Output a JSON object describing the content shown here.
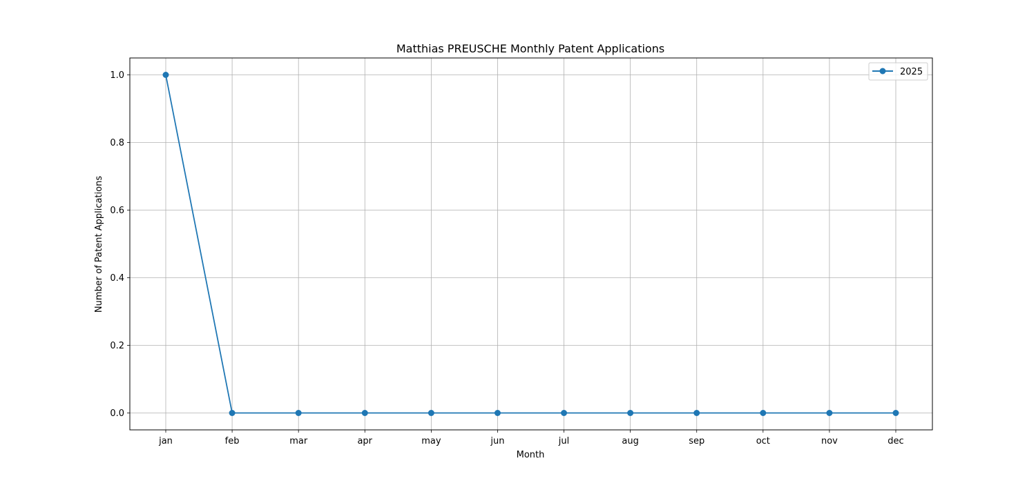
{
  "chart_data": {
    "type": "line",
    "title": "Matthias PREUSCHE Monthly Patent Applications",
    "xlabel": "Month",
    "ylabel": "Number of Patent Applications",
    "categories": [
      "jan",
      "feb",
      "mar",
      "apr",
      "may",
      "jun",
      "jul",
      "aug",
      "sep",
      "oct",
      "nov",
      "dec"
    ],
    "series": [
      {
        "name": "2025",
        "values": [
          1,
          0,
          0,
          0,
          0,
          0,
          0,
          0,
          0,
          0,
          0,
          0
        ],
        "color": "#1f77b4",
        "marker": "circle"
      }
    ],
    "ylim": [
      -0.05,
      1.05
    ],
    "yticks": [
      "0.0",
      "0.2",
      "0.4",
      "0.6",
      "0.8",
      "1.0"
    ],
    "grid": true,
    "legend": "top-right"
  }
}
